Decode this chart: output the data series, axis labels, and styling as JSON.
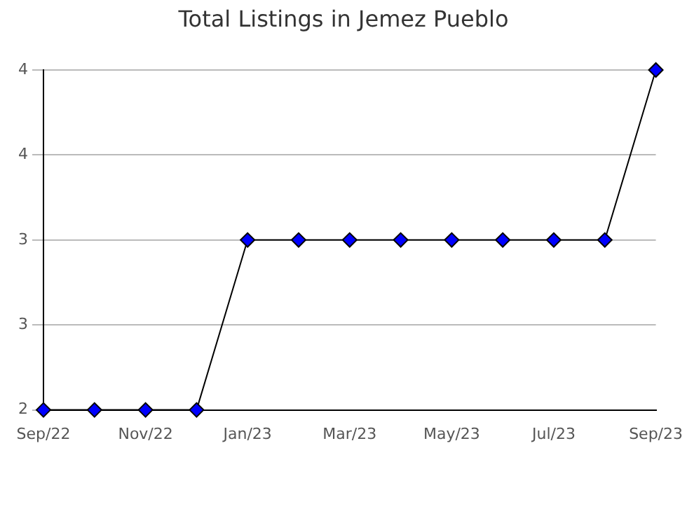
{
  "chart_data": {
    "type": "line",
    "title": "Total Listings in Jemez Pueblo",
    "categories": [
      "Sep/22",
      null,
      "Nov/22",
      null,
      "Jan/23",
      null,
      "Mar/23",
      null,
      "May/23",
      null,
      "Jul/23",
      null,
      "Sep/23"
    ],
    "series": [
      {
        "color": "#0000ff",
        "values": [
          2,
          2,
          2,
          2,
          3,
          3,
          3,
          3,
          3,
          3,
          3,
          3,
          4
        ]
      }
    ],
    "ylim": [
      2,
      4
    ],
    "yticks": [
      2,
      {
        "value": 2.5,
        "label": "3"
      },
      3,
      {
        "value": 3.5,
        "label": "4"
      },
      4
    ],
    "grid": "y",
    "legend": false,
    "marker": "diamond",
    "line_style": "solid"
  }
}
